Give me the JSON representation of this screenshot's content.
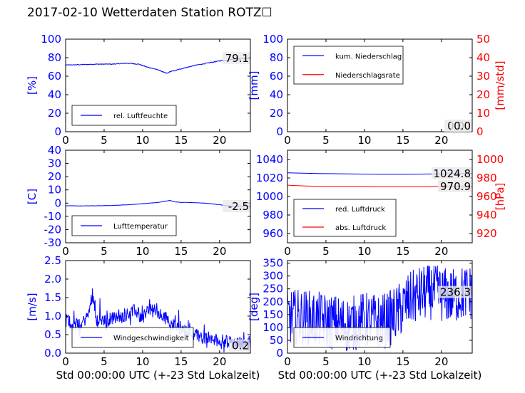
{
  "title": "2017-02-10 Wetterdaten Station ROTZ☐",
  "colors": {
    "blue": "#0000ff",
    "red": "#ff0000",
    "black": "#000000"
  },
  "chart_data": [
    {
      "type": "line",
      "id": "p1",
      "ylabel": "[%]",
      "ylim": [
        0,
        100
      ],
      "yticks": [
        0,
        20,
        40,
        60,
        80,
        100
      ],
      "xlim": [
        0,
        24
      ],
      "xticks": [
        0,
        5,
        10,
        15,
        20
      ],
      "xlabel": "",
      "legend": {
        "placement": "bottom-left"
      },
      "annotations": [
        {
          "text": "79.1",
          "y": 79.1,
          "axis": "left"
        }
      ],
      "series": [
        {
          "name": "rel. Luftfeuchte",
          "color": "#0000ff",
          "axis": "left",
          "noise": 0.8,
          "x": [
            0,
            2,
            4,
            6,
            8,
            9.5,
            10.5,
            11.5,
            12.3,
            12.8,
            13.2,
            13.6,
            14.2,
            15,
            16,
            17,
            18,
            19,
            20,
            21,
            22,
            23,
            24
          ],
          "y": [
            72,
            72.5,
            73,
            73,
            74,
            73,
            70,
            68,
            66,
            64,
            63,
            65,
            66,
            68,
            70,
            72,
            73.5,
            75,
            76.5,
            77.5,
            78.5,
            79,
            79.1
          ]
        }
      ]
    },
    {
      "type": "line",
      "id": "p2",
      "ylabel": "[mm]",
      "ylim": [
        0,
        100
      ],
      "yticks": [
        0,
        20,
        40,
        60,
        80,
        100
      ],
      "y2label": "[mm/std]",
      "y2lim": [
        0,
        50
      ],
      "y2ticks": [
        0,
        10,
        20,
        30,
        40,
        50
      ],
      "xlim": [
        0,
        24
      ],
      "xticks": [
        0,
        5,
        10,
        15,
        20
      ],
      "xlabel": "",
      "legend": {
        "placement": "top-left"
      },
      "annotations": [
        {
          "text": "0.0",
          "y": 0,
          "axis": "left"
        },
        {
          "text": "0.0",
          "y": 0,
          "axis": "right"
        }
      ],
      "series": [
        {
          "name": "kum. Niederschlag",
          "color": "#0000ff",
          "axis": "left",
          "noise": 0,
          "x": [
            0,
            24
          ],
          "y": [
            0,
            0
          ]
        },
        {
          "name": "Niederschlagsrate",
          "color": "#ff0000",
          "axis": "right",
          "noise": 0,
          "x": [
            0,
            24
          ],
          "y": [
            0,
            0
          ]
        }
      ]
    },
    {
      "type": "line",
      "id": "p3",
      "ylabel": "[C]",
      "ylim": [
        -30,
        40
      ],
      "yticks": [
        -30,
        -20,
        -10,
        0,
        10,
        20,
        30,
        40
      ],
      "xlim": [
        0,
        24
      ],
      "xticks": [
        0,
        5,
        10,
        15,
        20
      ],
      "xlabel": "",
      "legend": {
        "placement": "bottom-left"
      },
      "annotations": [
        {
          "text": "-2.5",
          "y": -2.5,
          "axis": "left"
        }
      ],
      "series": [
        {
          "name": "Lufttemperatur",
          "color": "#0000ff",
          "axis": "left",
          "noise": 0.25,
          "x": [
            0,
            2,
            4,
            6,
            8,
            10,
            11,
            12,
            12.8,
            13.5,
            14.2,
            15,
            16,
            17,
            18,
            19,
            20,
            21,
            22,
            23,
            24
          ],
          "y": [
            -2,
            -2.1,
            -2,
            -1.8,
            -1.3,
            -0.5,
            0,
            0.5,
            1.3,
            2,
            1,
            0.5,
            0.5,
            0.3,
            0,
            -0.5,
            -1.2,
            -2,
            -2.5,
            -2.7,
            -2.5
          ]
        }
      ]
    },
    {
      "type": "line",
      "id": "p4",
      "ylabel": "",
      "ylim": [
        950,
        1050
      ],
      "yticks": [
        960,
        980,
        1000,
        1020,
        1040
      ],
      "y2label": "[hPa]",
      "y2lim": [
        910,
        1010
      ],
      "y2ticks": [
        920,
        940,
        960,
        980,
        1000
      ],
      "xlim": [
        0,
        24
      ],
      "xticks": [
        0,
        5,
        10,
        15,
        20
      ],
      "xlabel": "",
      "legend": {
        "placement": "bottom-left"
      },
      "annotations": [
        {
          "text": "1024.8",
          "y": 1024.8,
          "axis": "left"
        },
        {
          "text": "970.9",
          "y": 970.9,
          "axis": "right"
        }
      ],
      "series": [
        {
          "name": "red. Luftdruck",
          "color": "#0000ff",
          "axis": "left",
          "noise": 0,
          "x": [
            0,
            2,
            4,
            6,
            8,
            10,
            12,
            14,
            16,
            18,
            20,
            22,
            24
          ],
          "y": [
            1025.5,
            1025.2,
            1024.8,
            1024.6,
            1024.4,
            1024.2,
            1024.0,
            1024.0,
            1024.1,
            1024.3,
            1024.5,
            1024.7,
            1024.8
          ]
        },
        {
          "name": "abs. Luftdruck",
          "color": "#ff0000",
          "axis": "right",
          "noise": 0,
          "x": [
            0,
            2,
            4,
            6,
            8,
            10,
            12,
            14,
            16,
            18,
            20,
            22,
            24
          ],
          "y": [
            972.2,
            971.5,
            971.0,
            970.9,
            970.9,
            970.9,
            970.8,
            970.8,
            970.8,
            970.8,
            970.9,
            970.9,
            970.9
          ]
        }
      ]
    },
    {
      "type": "line",
      "id": "p5",
      "ylabel": "[m/s]",
      "ylim": [
        0,
        2.5
      ],
      "yticks": [
        0,
        0.5,
        1.0,
        1.5,
        2.0,
        2.5
      ],
      "xlim": [
        0,
        24
      ],
      "xticks": [
        0,
        5,
        10,
        15,
        20
      ],
      "xlabel": "Std 00:00:00 UTC (+-23 Std Lokalzeit)",
      "legend": {
        "placement": "bottom-left"
      },
      "annotations": [
        {
          "text": "0.2",
          "y": 0.2,
          "axis": "left"
        }
      ],
      "series": [
        {
          "name": "Windgeschwindigkeit",
          "color": "#0000ff",
          "axis": "left",
          "noise": 0.35,
          "x": [
            0,
            1,
            2,
            3,
            3.5,
            4,
            5,
            6,
            7,
            8,
            9,
            10,
            11,
            12,
            13,
            14,
            15,
            16,
            17,
            18,
            19,
            20,
            21,
            22,
            23,
            24
          ],
          "y": [
            0.9,
            0.7,
            0.7,
            1.0,
            1.6,
            0.9,
            0.8,
            0.9,
            0.9,
            1.0,
            1.1,
            0.9,
            1.2,
            1.0,
            0.9,
            0.7,
            0.6,
            0.5,
            0.45,
            0.35,
            0.3,
            0.3,
            0.25,
            0.25,
            0.2,
            0.2
          ]
        }
      ]
    },
    {
      "type": "line",
      "id": "p6",
      "ylabel": "[deg]",
      "ylim": [
        0,
        360
      ],
      "yticks": [
        0,
        50,
        100,
        150,
        200,
        250,
        300,
        350
      ],
      "xlim": [
        0,
        24
      ],
      "xticks": [
        0,
        5,
        10,
        15,
        20
      ],
      "xlabel": "Std 00:00:00 UTC (+-23 Std Lokalzeit)",
      "legend": {
        "placement": "bottom-left"
      },
      "annotations": [
        {
          "text": "236.3",
          "y": 236.3,
          "axis": "left"
        }
      ],
      "series": [
        {
          "name": "Windrichtung",
          "color": "#0000ff",
          "axis": "left",
          "noise": 110,
          "x": [
            0,
            2,
            4,
            6,
            8,
            10,
            12,
            13,
            14,
            15,
            16,
            17,
            18,
            19,
            20,
            21,
            22,
            23,
            24
          ],
          "y": [
            140,
            140,
            130,
            120,
            110,
            130,
            120,
            130,
            150,
            180,
            210,
            225,
            235,
            240,
            230,
            220,
            225,
            235,
            236
          ]
        }
      ]
    }
  ]
}
